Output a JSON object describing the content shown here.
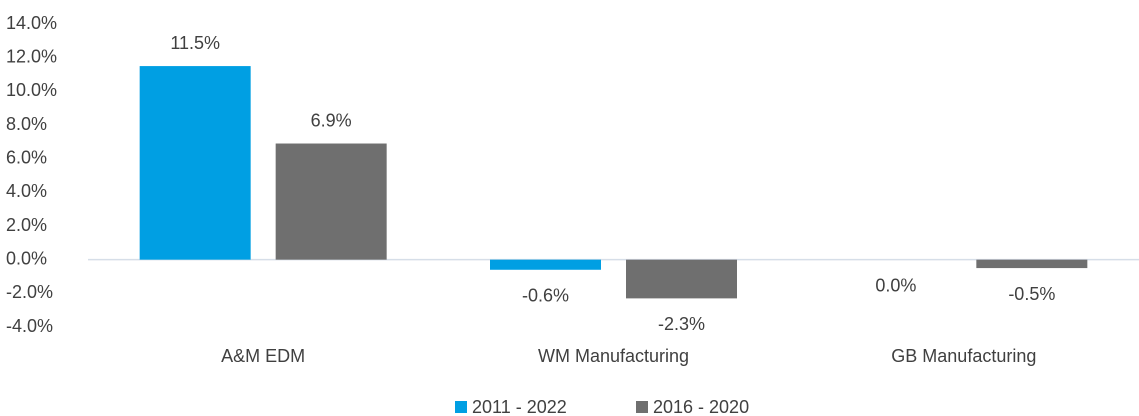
{
  "chart_data": {
    "type": "bar",
    "categories": [
      "A&M EDM",
      "WM Manufacturing",
      "GB Manufacturing"
    ],
    "series": [
      {
        "name": "2011 - 2022",
        "color": "#009fe3",
        "values": [
          11.5,
          -0.6,
          0.0
        ],
        "value_labels": [
          "11.5%",
          "-0.6%",
          "0.0%"
        ]
      },
      {
        "name": "2016 - 2020",
        "color": "#6f6f6f",
        "values": [
          6.9,
          -2.3,
          -0.5
        ],
        "value_labels": [
          "6.9%",
          "-2.3%",
          "-0.5%"
        ]
      }
    ],
    "ylim": [
      -4,
      14
    ],
    "yticks": [
      {
        "value": -4,
        "label": "-4.0%"
      },
      {
        "value": -2,
        "label": "-2.0%"
      },
      {
        "value": 0,
        "label": "0.0%"
      },
      {
        "value": 2,
        "label": "2.0%"
      },
      {
        "value": 4,
        "label": "4.0%"
      },
      {
        "value": 6,
        "label": "6.0%"
      },
      {
        "value": 8,
        "label": "8.0%"
      },
      {
        "value": 10,
        "label": "10.0%"
      },
      {
        "value": 12,
        "label": "12.0%"
      },
      {
        "value": 14,
        "label": "14.0%"
      }
    ],
    "grid": false,
    "legend": "bottom"
  }
}
